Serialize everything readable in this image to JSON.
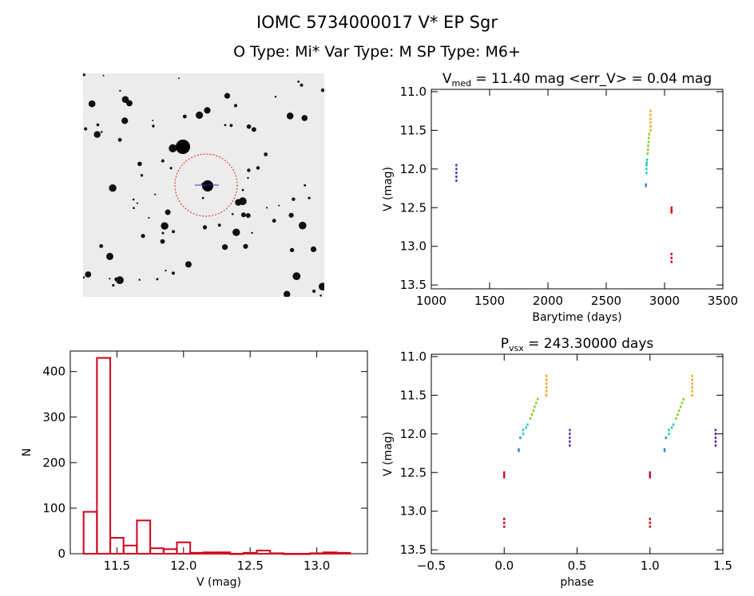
{
  "header": {
    "title_line1": "IOMC 5734000017   V* EP Sgr",
    "title_line2": "O Type: Mi*  Var Type: M   SP Type: M6+"
  },
  "chart_data": [
    {
      "id": "lightcurve",
      "type": "scatter",
      "title": "V_med = 11.40 mag <err_V> = 0.04 mag",
      "title_parts": {
        "main": "V",
        "sub": "med",
        "rest": " = 11.40 mag <err_V> = 0.04 mag"
      },
      "xlabel": "Barytime (days)",
      "ylabel": "V (mag)",
      "xlim": [
        1000,
        3500
      ],
      "ylim": [
        13.55,
        10.97
      ],
      "xticks": [
        1000,
        1500,
        2000,
        2500,
        3000,
        3500
      ],
      "yticks": [
        11.0,
        11.5,
        12.0,
        12.5,
        13.0,
        13.5
      ],
      "xtick_labels": [
        "1000",
        "1500",
        "2000",
        "2500",
        "3000",
        "3500"
      ],
      "ytick_labels": [
        "11.0",
        "11.5",
        "12.0",
        "12.5",
        "13.0",
        "13.5"
      ],
      "series": [
        {
          "color": "#5a2ca8",
          "points": [
            [
              1215,
              11.95
            ],
            [
              1215,
              12.0
            ],
            [
              1215,
              12.05
            ],
            [
              1215,
              12.1
            ],
            [
              1215,
              12.15
            ]
          ]
        },
        {
          "color": "#2a88d8",
          "points": [
            [
              2840,
              12.2
            ],
            [
              2840,
              12.22
            ]
          ]
        },
        {
          "color": "#19c9b7",
          "points": [
            [
              2845,
              11.95
            ],
            [
              2845,
              12.0
            ],
            [
              2845,
              12.05
            ],
            [
              2848,
              11.92
            ],
            [
              2850,
              11.88
            ]
          ]
        },
        {
          "color": "#7ed321",
          "points": [
            [
              2855,
              11.8
            ],
            [
              2858,
              11.75
            ],
            [
              2860,
              11.7
            ],
            [
              2862,
              11.65
            ],
            [
              2865,
              11.6
            ],
            [
              2868,
              11.55
            ]
          ]
        },
        {
          "color": "#f5a623",
          "points": [
            [
              2880,
              11.25
            ],
            [
              2880,
              11.3
            ],
            [
              2880,
              11.35
            ],
            [
              2880,
              11.4
            ],
            [
              2880,
              11.45
            ],
            [
              2880,
              11.5
            ]
          ]
        },
        {
          "color": "#d0021b",
          "points": [
            [
              3060,
              12.5
            ],
            [
              3060,
              12.53
            ],
            [
              3060,
              12.56
            ],
            [
              3060,
              13.1
            ],
            [
              3060,
              13.15
            ],
            [
              3060,
              13.2
            ]
          ]
        }
      ]
    },
    {
      "id": "histogram",
      "type": "bar",
      "xlabel": "V (mag)",
      "ylabel": "N",
      "xlim": [
        11.15,
        13.38
      ],
      "ylim": [
        0,
        445
      ],
      "xticks": [
        11.5,
        12.0,
        12.5,
        13.0
      ],
      "yticks": [
        0,
        100,
        200,
        300,
        400
      ],
      "xtick_labels": [
        "11.5",
        "12.0",
        "12.5",
        "13.0"
      ],
      "ytick_labels": [
        "0",
        "100",
        "200",
        "300",
        "400"
      ],
      "color": "#d0021b",
      "bins": [
        [
          11.25,
          11.35,
          92
        ],
        [
          11.35,
          11.45,
          430
        ],
        [
          11.45,
          11.55,
          35
        ],
        [
          11.55,
          11.65,
          18
        ],
        [
          11.65,
          11.75,
          73
        ],
        [
          11.75,
          11.85,
          12
        ],
        [
          11.85,
          11.95,
          10
        ],
        [
          11.95,
          12.05,
          25
        ],
        [
          12.05,
          12.15,
          2
        ],
        [
          12.15,
          12.25,
          3
        ],
        [
          12.25,
          12.35,
          3
        ],
        [
          12.35,
          12.45,
          0
        ],
        [
          12.45,
          12.55,
          2
        ],
        [
          12.55,
          12.65,
          7
        ],
        [
          12.65,
          12.75,
          1
        ],
        [
          12.75,
          12.85,
          0
        ],
        [
          12.85,
          12.95,
          0
        ],
        [
          12.95,
          13.05,
          1
        ],
        [
          13.05,
          13.15,
          3
        ],
        [
          13.15,
          13.25,
          2
        ]
      ]
    },
    {
      "id": "phased",
      "type": "scatter",
      "title": "P_vsx = 243.30000 days",
      "title_parts": {
        "main": "P",
        "sub": "vsx",
        "rest": " = 243.30000 days"
      },
      "xlabel": "phase",
      "ylabel": "V (mag)",
      "xlim": [
        -0.5,
        1.5
      ],
      "ylim": [
        13.55,
        10.97
      ],
      "xticks": [
        -0.5,
        0.0,
        0.5,
        1.0,
        1.5
      ],
      "yticks": [
        11.0,
        11.5,
        12.0,
        12.5,
        13.0,
        13.5
      ],
      "xtick_labels": [
        "−0.5",
        "0.0",
        "0.5",
        "1.0",
        "1.5"
      ],
      "ytick_labels": [
        "11.0",
        "11.5",
        "12.0",
        "12.5",
        "13.0",
        "13.5"
      ],
      "series": [
        {
          "color": "#5a2ca8",
          "points": [
            [
              0.45,
              11.95
            ],
            [
              0.45,
              12.0
            ],
            [
              0.45,
              12.05
            ],
            [
              0.45,
              12.1
            ],
            [
              0.45,
              12.15
            ],
            [
              1.45,
              11.95
            ],
            [
              1.45,
              12.0
            ],
            [
              1.45,
              12.05
            ],
            [
              1.45,
              12.1
            ],
            [
              1.45,
              12.15
            ]
          ]
        },
        {
          "color": "#2a88d8",
          "points": [
            [
              0.1,
              12.2
            ],
            [
              0.1,
              12.22
            ],
            [
              0.11,
              12.05
            ],
            [
              1.1,
              12.2
            ],
            [
              1.1,
              12.22
            ],
            [
              1.11,
              12.05
            ]
          ]
        },
        {
          "color": "#19c9b7",
          "points": [
            [
              0.13,
              11.95
            ],
            [
              0.13,
              12.0
            ],
            [
              0.15,
              11.92
            ],
            [
              0.16,
              11.88
            ],
            [
              1.13,
              11.95
            ],
            [
              1.13,
              12.0
            ],
            [
              1.15,
              11.92
            ],
            [
              1.16,
              11.88
            ]
          ]
        },
        {
          "color": "#7ed321",
          "points": [
            [
              0.18,
              11.8
            ],
            [
              0.19,
              11.75
            ],
            [
              0.2,
              11.7
            ],
            [
              0.21,
              11.65
            ],
            [
              0.22,
              11.6
            ],
            [
              0.23,
              11.55
            ],
            [
              1.18,
              11.8
            ],
            [
              1.19,
              11.75
            ],
            [
              1.2,
              11.7
            ],
            [
              1.21,
              11.65
            ],
            [
              1.22,
              11.6
            ],
            [
              1.23,
              11.55
            ]
          ]
        },
        {
          "color": "#f5a623",
          "points": [
            [
              0.29,
              11.25
            ],
            [
              0.29,
              11.3
            ],
            [
              0.29,
              11.35
            ],
            [
              0.29,
              11.4
            ],
            [
              0.29,
              11.45
            ],
            [
              0.29,
              11.5
            ],
            [
              1.29,
              11.25
            ],
            [
              1.29,
              11.3
            ],
            [
              1.29,
              11.35
            ],
            [
              1.29,
              11.4
            ],
            [
              1.29,
              11.45
            ],
            [
              1.29,
              11.5
            ]
          ]
        },
        {
          "color": "#d0021b",
          "points": [
            [
              0.0,
              12.5
            ],
            [
              0.0,
              12.53
            ],
            [
              0.0,
              12.56
            ],
            [
              0.0,
              13.1
            ],
            [
              0.0,
              13.15
            ],
            [
              0.0,
              13.2
            ],
            [
              1.0,
              12.5
            ],
            [
              1.0,
              12.53
            ],
            [
              1.0,
              12.56
            ],
            [
              1.0,
              13.1
            ],
            [
              1.0,
              13.15
            ],
            [
              1.0,
              13.2
            ]
          ]
        }
      ]
    }
  ]
}
